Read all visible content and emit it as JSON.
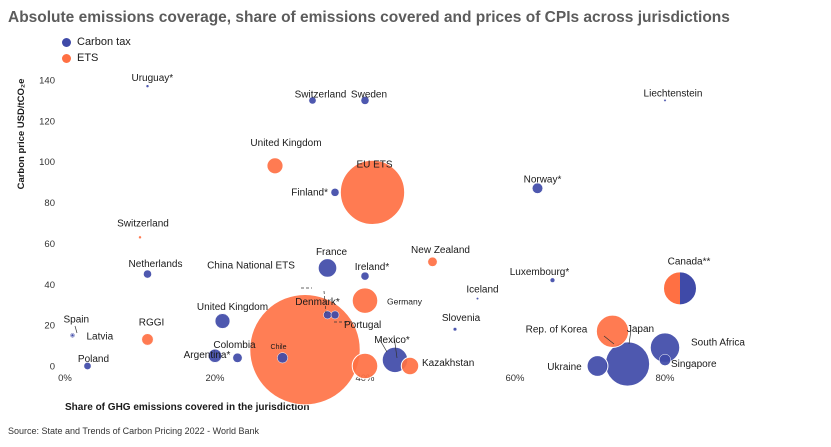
{
  "title": "Absolute emissions coverage, share of emissions covered and prices of CPIs across jurisdictions",
  "source": "Source: State and Trends of Carbon Pricing 2022 - World Bank",
  "legend": [
    {
      "label": "Carbon tax",
      "color": "#3f4aa8"
    },
    {
      "label": "ETS",
      "color": "#ff7043"
    }
  ],
  "chart_data": {
    "type": "scatter",
    "subtype": "bubble",
    "title": "Absolute emissions coverage, share of emissions covered and prices of CPIs across jurisdictions",
    "xlabel": "Share of GHG emissions covered in the jurisdiction",
    "ylabel": "Carbon price USD/tCO₂e",
    "xlim": [
      0,
      100
    ],
    "ylim": [
      0,
      140
    ],
    "x_ticks": [
      "0%",
      "20%",
      "40%",
      "60%",
      "80%"
    ],
    "y_ticks": [
      "0",
      "20",
      "40",
      "60",
      "80",
      "100",
      "120",
      "140"
    ],
    "grid": false,
    "legend_position": "top-left",
    "colors": {
      "Carbon tax": "#3f4aa8",
      "ETS": "#ff7043"
    },
    "series": [
      {
        "name": "Carbon tax",
        "points": [
          {
            "label": "Uruguay*",
            "x": 11,
            "y": 137,
            "size": 0.2
          },
          {
            "label": "Switzerland",
            "x": 33,
            "y": 130,
            "size": 1.2
          },
          {
            "label": "Sweden",
            "x": 40,
            "y": 130,
            "size": 1.5
          },
          {
            "label": "Liechtenstein",
            "x": 80,
            "y": 130,
            "size": 0.1
          },
          {
            "label": "Finland*",
            "x": 36,
            "y": 85,
            "size": 1.5
          },
          {
            "label": "Norway*",
            "x": 63,
            "y": 87,
            "size": 2.5
          },
          {
            "label": "Netherlands",
            "x": 11,
            "y": 45,
            "size": 1.5
          },
          {
            "label": "France",
            "x": 35,
            "y": 48,
            "size": 8
          },
          {
            "label": "Ireland*",
            "x": 40,
            "y": 44,
            "size": 1.5
          },
          {
            "label": "Iceland",
            "x": 55,
            "y": 33,
            "size": 0.1
          },
          {
            "label": "Luxembourg*",
            "x": 65,
            "y": 42,
            "size": 0.5
          },
          {
            "label": "Canada**",
            "x": 82,
            "y": 38,
            "size": 25
          },
          {
            "label": "Spain",
            "x": 1,
            "y": 15,
            "size": 0.5
          },
          {
            "label": "Latvia",
            "x": 1,
            "y": 15,
            "size": 0.2
          },
          {
            "label": "United Kingdom",
            "x": 21,
            "y": 22,
            "size": 5
          },
          {
            "label": "Denmark*",
            "x": 35,
            "y": 25,
            "size": 1.5
          },
          {
            "label": "Portugal",
            "x": 36,
            "y": 25,
            "size": 1.5
          },
          {
            "label": "Slovenia",
            "x": 52,
            "y": 18,
            "size": 0.3
          },
          {
            "label": "Poland",
            "x": 3,
            "y": 0,
            "size": 1.2
          },
          {
            "label": "Argentina*",
            "x": 20,
            "y": 5,
            "size": 4
          },
          {
            "label": "Colombia",
            "x": 23,
            "y": 4,
            "size": 2
          },
          {
            "label": "Chile",
            "x": 29,
            "y": 4,
            "size": 2.5
          },
          {
            "label": "Mexico*",
            "x": 44,
            "y": 3,
            "size": 15
          },
          {
            "label": "Ukraine",
            "x": 71,
            "y": 0,
            "size": 10
          },
          {
            "label": "Japan",
            "x": 75,
            "y": 1,
            "size": 45
          },
          {
            "label": "South Africa",
            "x": 80,
            "y": 9,
            "size": 20
          },
          {
            "label": "Singapore",
            "x": 80,
            "y": 3,
            "size": 3
          }
        ]
      },
      {
        "name": "ETS",
        "points": [
          {
            "label": "United Kingdom",
            "x": 28,
            "y": 98,
            "size": 6
          },
          {
            "label": "EU ETS",
            "x": 41,
            "y": 85,
            "size": 95
          },
          {
            "label": "Switzerland",
            "x": 10,
            "y": 63,
            "size": 0.2
          },
          {
            "label": "New Zealand",
            "x": 49,
            "y": 51,
            "size": 2
          },
          {
            "label": "Germany",
            "x": 40,
            "y": 32,
            "size": 15
          },
          {
            "label": "RGGI",
            "x": 11,
            "y": 13,
            "size": 3
          },
          {
            "label": "China National ETS",
            "x": 32,
            "y": 8,
            "size": 280
          },
          {
            "label": "Mexico*",
            "x": 40,
            "y": 0,
            "size": 15
          },
          {
            "label": "Kazakhstan",
            "x": 46,
            "y": 0,
            "size": 7
          },
          {
            "label": "Rep. of Korea",
            "x": 73,
            "y": 17,
            "size": 24
          },
          {
            "label": "Canada**",
            "x": 82,
            "y": 38,
            "size": 25
          }
        ]
      }
    ]
  }
}
